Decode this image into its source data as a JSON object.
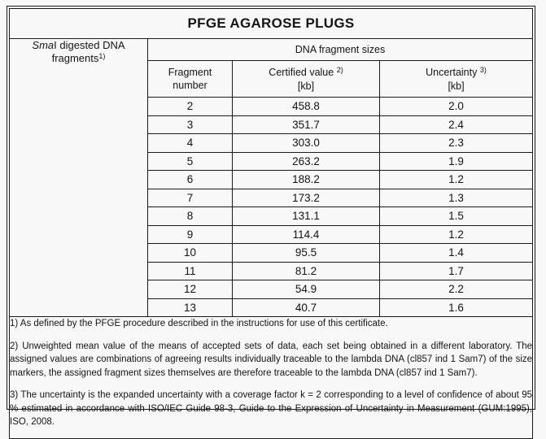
{
  "page": {
    "title": "PFGE AGAROSE PLUGS"
  },
  "table": {
    "group_header": "DNA fragment sizes",
    "row_label": {
      "enzyme_italic": "Sma",
      "line1_rest": "I digested DNA",
      "line2": "fragments",
      "footnote_ref": "1)"
    },
    "columns": {
      "fragment": {
        "line1": "Fragment",
        "line2": "number"
      },
      "certified": {
        "label": "Certified value",
        "footnote_ref": "2)",
        "unit": "[kb]"
      },
      "uncertainty": {
        "label": "Uncertainty",
        "footnote_ref": "3)",
        "unit": "[kb]"
      }
    },
    "rows": [
      {
        "fragment": "2",
        "certified": "458.8",
        "uncertainty": "2.0"
      },
      {
        "fragment": "3",
        "certified": "351.7",
        "uncertainty": "2.4"
      },
      {
        "fragment": "4",
        "certified": "303.0",
        "uncertainty": "2.3"
      },
      {
        "fragment": "5",
        "certified": "263.2",
        "uncertainty": "1.9"
      },
      {
        "fragment": "6",
        "certified": "188.2",
        "uncertainty": "1.2"
      },
      {
        "fragment": "7",
        "certified": "173.2",
        "uncertainty": "1.3"
      },
      {
        "fragment": "8",
        "certified": "131.1",
        "uncertainty": "1.5"
      },
      {
        "fragment": "9",
        "certified": "114.4",
        "uncertainty": "1.2"
      },
      {
        "fragment": "10",
        "certified": "95.5",
        "uncertainty": "1.4"
      },
      {
        "fragment": "11",
        "certified": "81.2",
        "uncertainty": "1.7"
      },
      {
        "fragment": "12",
        "certified": "54.9",
        "uncertainty": "2.2"
      },
      {
        "fragment": "13",
        "certified": "40.7",
        "uncertainty": "1.6"
      }
    ]
  },
  "footnotes": [
    "1) As defined by the PFGE procedure described in the instructions for use of this certificate.",
    "2) Unweighted mean value of the means of accepted sets of data, each set being obtained in a different laboratory. The assigned values are combinations of agreeing results individually traceable to the lambda DNA (cl857 ind 1 Sam7) of the size markers, the assigned fragment sizes themselves are therefore traceable to the lambda DNA (cl857 ind 1 Sam7).",
    "3) The uncertainty is the expanded uncertainty with a coverage factor k = 2 corresponding to a level of confidence of about 95 % estimated in accordance with ISO/IEC Guide 98-3, Guide to the Expression of Uncertainty in Measurement (GUM:1995), ISO, 2008."
  ],
  "colors": {
    "paper": "#f8f8f8",
    "border": "#1a1a1a",
    "text": "#141414"
  }
}
